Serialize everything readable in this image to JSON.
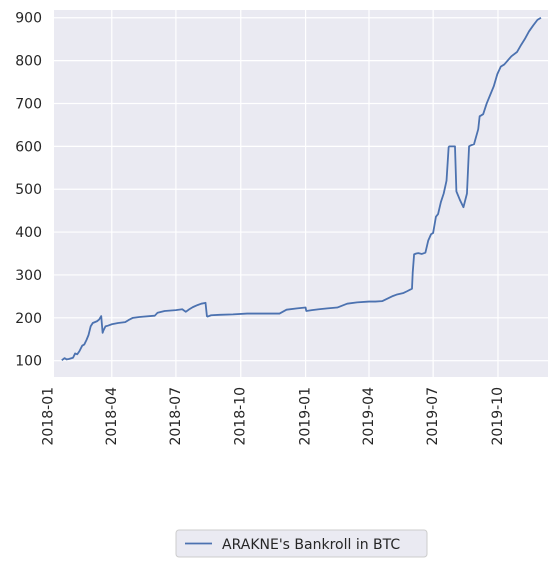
{
  "chart_data": {
    "type": "line",
    "title": "",
    "xlabel": "",
    "ylabel": "",
    "ylim": [
      62,
      918
    ],
    "xlim": [
      "2018-01-09",
      "2019-12-11"
    ],
    "grid": true,
    "legend_position": "bottom-center, outside plot",
    "x_ticks": [
      "2018-01",
      "2018-04",
      "2018-07",
      "2018-10",
      "2019-01",
      "2019-04",
      "2019-07",
      "2019-10"
    ],
    "y_ticks": [
      100,
      200,
      300,
      400,
      500,
      600,
      700,
      800,
      900
    ],
    "colors": {
      "background": "#eaeaf2",
      "grid": "#ffffff",
      "line": "#4c72b0"
    },
    "series": [
      {
        "name": "ARAKNE's Bankroll in BTC",
        "x": [
          "2018-01-20",
          "2018-01-24",
          "2018-01-27",
          "2018-01-30",
          "2018-02-05",
          "2018-02-08",
          "2018-02-11",
          "2018-02-14",
          "2018-02-18",
          "2018-02-21",
          "2018-02-24",
          "2018-02-27",
          "2018-03-02",
          "2018-03-05",
          "2018-03-08",
          "2018-03-11",
          "2018-03-14",
          "2018-03-17",
          "2018-03-19",
          "2018-03-20",
          "2018-03-23",
          "2018-03-27",
          "2018-04-01",
          "2018-04-10",
          "2018-04-20",
          "2018-04-25",
          "2018-05-01",
          "2018-05-10",
          "2018-06-01",
          "2018-06-05",
          "2018-06-15",
          "2018-07-01",
          "2018-07-10",
          "2018-07-15",
          "2018-07-20",
          "2018-07-25",
          "2018-08-01",
          "2018-08-06",
          "2018-08-12",
          "2018-08-14",
          "2018-08-15",
          "2018-08-20",
          "2018-09-01",
          "2018-09-20",
          "2018-10-10",
          "2018-11-01",
          "2018-11-25",
          "2018-12-05",
          "2018-12-20",
          "2019-01-01",
          "2019-01-02",
          "2019-01-10",
          "2019-01-20",
          "2019-02-01",
          "2019-02-15",
          "2019-03-01",
          "2019-03-15",
          "2019-04-01",
          "2019-04-10",
          "2019-04-20",
          "2019-05-05",
          "2019-05-10",
          "2019-05-20",
          "2019-05-25",
          "2019-06-01",
          "2019-06-02",
          "2019-06-04",
          "2019-06-07",
          "2019-06-10",
          "2019-06-15",
          "2019-06-20",
          "2019-06-24",
          "2019-06-28",
          "2019-07-01",
          "2019-07-05",
          "2019-07-08",
          "2019-07-12",
          "2019-07-16",
          "2019-07-20",
          "2019-07-23",
          "2019-07-24",
          "2019-08-01",
          "2019-08-03",
          "2019-08-08",
          "2019-08-13",
          "2019-08-18",
          "2019-08-21",
          "2019-08-23",
          "2019-08-28",
          "2019-09-03",
          "2019-09-05",
          "2019-09-10",
          "2019-09-15",
          "2019-09-20",
          "2019-09-25",
          "2019-09-30",
          "2019-10-05",
          "2019-10-10",
          "2019-10-20",
          "2019-10-28",
          "2019-11-03",
          "2019-11-08",
          "2019-11-14",
          "2019-11-20",
          "2019-11-26",
          "2019-12-01"
        ],
        "y": [
          101,
          106,
          103,
          104,
          107,
          117,
          115,
          122,
          135,
          138,
          148,
          160,
          180,
          188,
          190,
          192,
          196,
          204,
          165,
          170,
          180,
          182,
          185,
          188,
          190,
          195,
          200,
          202,
          205,
          212,
          216,
          218,
          220,
          214,
          220,
          225,
          230,
          233,
          235,
          204,
          203,
          206,
          207,
          208,
          210,
          210,
          210,
          219,
          222,
          224,
          216,
          218,
          220,
          222,
          224,
          233,
          236,
          238,
          238,
          239,
          251,
          254,
          258,
          262,
          268,
          305,
          348,
          350,
          351,
          349,
          352,
          380,
          395,
          398,
          436,
          442,
          470,
          490,
          520,
          598,
          600,
          600,
          495,
          475,
          458,
          490,
          600,
          602,
          605,
          640,
          670,
          675,
          700,
          720,
          740,
          768,
          786,
          791,
          810,
          820,
          837,
          850,
          868,
          882,
          895,
          900
        ]
      }
    ]
  },
  "legend": {
    "label": "ARAKNE's Bankroll in BTC"
  }
}
